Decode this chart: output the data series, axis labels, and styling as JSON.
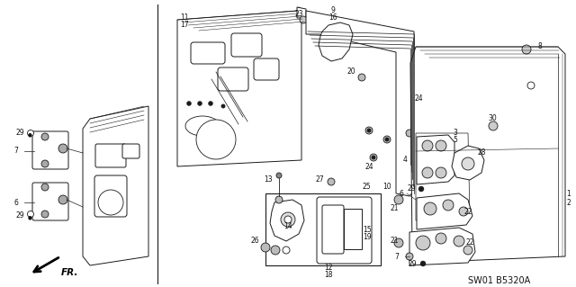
{
  "bg_color": "#ffffff",
  "diagram_code": "SW01 B5320A",
  "figsize": [
    6.4,
    3.19
  ],
  "dpi": 100,
  "lc": "#1a1a1a",
  "lw": 0.7
}
